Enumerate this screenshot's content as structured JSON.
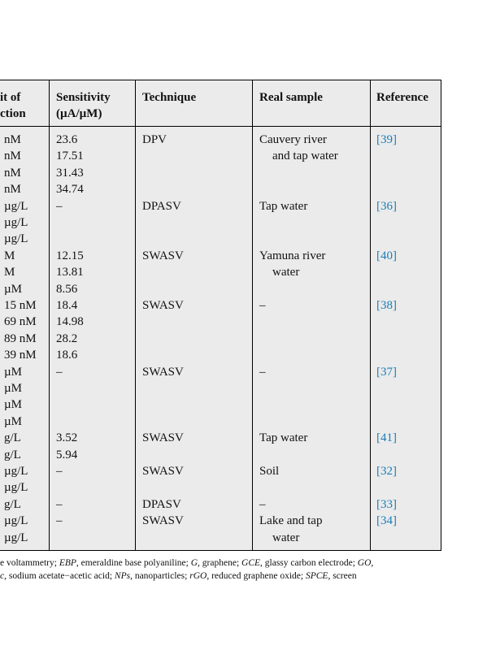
{
  "table": {
    "header": [
      [
        "it of",
        "ction"
      ],
      [
        "Sensitivity",
        "(µA/µM)"
      ],
      [
        "Technique"
      ],
      [
        "Real sample"
      ],
      [
        "Reference"
      ]
    ],
    "groups": [
      {
        "lod": [
          "nM",
          "nM",
          "nM",
          "nM"
        ],
        "sensitivity": [
          "23.6",
          "17.51",
          "31.43",
          "34.74"
        ],
        "technique": "DPV",
        "real_sample": [
          "Cauvery river",
          "and tap water"
        ],
        "reference": "[39]"
      },
      {
        "lod": [
          "µg/L",
          "µg/L",
          "µg/L"
        ],
        "sensitivity": [
          "–"
        ],
        "technique": "DPASV",
        "real_sample": [
          "Tap water"
        ],
        "reference": "[36]"
      },
      {
        "lod": [
          "M",
          "M",
          "µM"
        ],
        "sensitivity": [
          "12.15",
          "13.81",
          "8.56"
        ],
        "technique": "SWASV",
        "real_sample": [
          "Yamuna river",
          "water"
        ],
        "reference": "[40]"
      },
      {
        "lod": [
          "15 nM",
          "69 nM",
          "89 nM",
          "39 nM"
        ],
        "sensitivity": [
          "18.4",
          "14.98",
          "28.2",
          "18.6"
        ],
        "technique": "SWASV",
        "real_sample": [
          "–"
        ],
        "reference": "[38]"
      },
      {
        "lod": [
          "µM",
          "µM",
          "µM",
          "µM"
        ],
        "sensitivity": [
          "–"
        ],
        "technique": "SWASV",
        "real_sample": [
          "–"
        ],
        "reference": "[37]"
      },
      {
        "lod": [
          "g/L",
          "g/L"
        ],
        "sensitivity": [
          "3.52",
          "5.94"
        ],
        "technique": "SWASV",
        "real_sample": [
          "Tap water"
        ],
        "reference": "[41]"
      },
      {
        "lod": [
          "µg/L",
          "µg/L"
        ],
        "sensitivity": [
          "–"
        ],
        "technique": "SWASV",
        "real_sample": [
          "Soil"
        ],
        "reference": "[32]"
      },
      {
        "lod": [
          "g/L"
        ],
        "sensitivity": [
          "–"
        ],
        "technique": "DPASV",
        "real_sample": [
          "–"
        ],
        "reference": "[33]"
      },
      {
        "lod": [
          "µg/L",
          "µg/L"
        ],
        "sensitivity": [
          "–"
        ],
        "technique": "SWASV",
        "real_sample": [
          "Lake and tap",
          "water"
        ],
        "reference": "[34]"
      }
    ]
  },
  "footnote": [
    [
      {
        "text": "e voltammetry; ",
        "italic": false
      },
      {
        "text": "EBP",
        "italic": true
      },
      {
        "text": ", emeraldine base polyaniline; ",
        "italic": false
      },
      {
        "text": "G",
        "italic": true
      },
      {
        "text": ", graphene; ",
        "italic": false
      },
      {
        "text": "GCE",
        "italic": true
      },
      {
        "text": ", glassy carbon electrode; ",
        "italic": false
      },
      {
        "text": "GO",
        "italic": true
      },
      {
        "text": ",",
        "italic": false
      }
    ],
    [
      {
        "text": "c",
        "italic": true
      },
      {
        "text": ", sodium acetate−acetic acid; ",
        "italic": false
      },
      {
        "text": "NPs",
        "italic": true
      },
      {
        "text": ", nanoparticles; ",
        "italic": false
      },
      {
        "text": "rGO",
        "italic": true
      },
      {
        "text": ", reduced graphene oxide; ",
        "italic": false
      },
      {
        "text": "SPCE",
        "italic": true
      },
      {
        "text": ", screen",
        "italic": false
      }
    ]
  ]
}
